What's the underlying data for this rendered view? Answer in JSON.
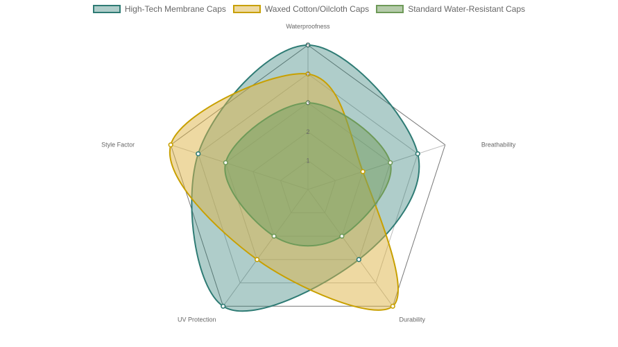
{
  "chart_data": {
    "type": "radar",
    "axes": [
      "Waterproofness",
      "Breathability",
      "Durability",
      "UV Protection",
      "Style Factor"
    ],
    "r_range": [
      0,
      5
    ],
    "ticks": [
      "1",
      "2",
      "3",
      "4",
      "5"
    ],
    "series": [
      {
        "name": "High-Tech Membrane Caps",
        "values": [
          5,
          4,
          3,
          5,
          4
        ],
        "stroke": "#2e7b74",
        "fill": "rgba(46,123,116,0.38)"
      },
      {
        "name": "Waxed Cotton/Oilcloth Caps",
        "values": [
          4,
          2,
          5,
          3,
          5
        ],
        "stroke": "#c8a000",
        "fill": "rgba(222,180,70,0.50)"
      },
      {
        "name": "Standard Water-Resistant Caps",
        "values": [
          3,
          3,
          2,
          2,
          3
        ],
        "stroke": "#6e9a58",
        "fill": "rgba(120,160,100,0.55)"
      }
    ]
  }
}
